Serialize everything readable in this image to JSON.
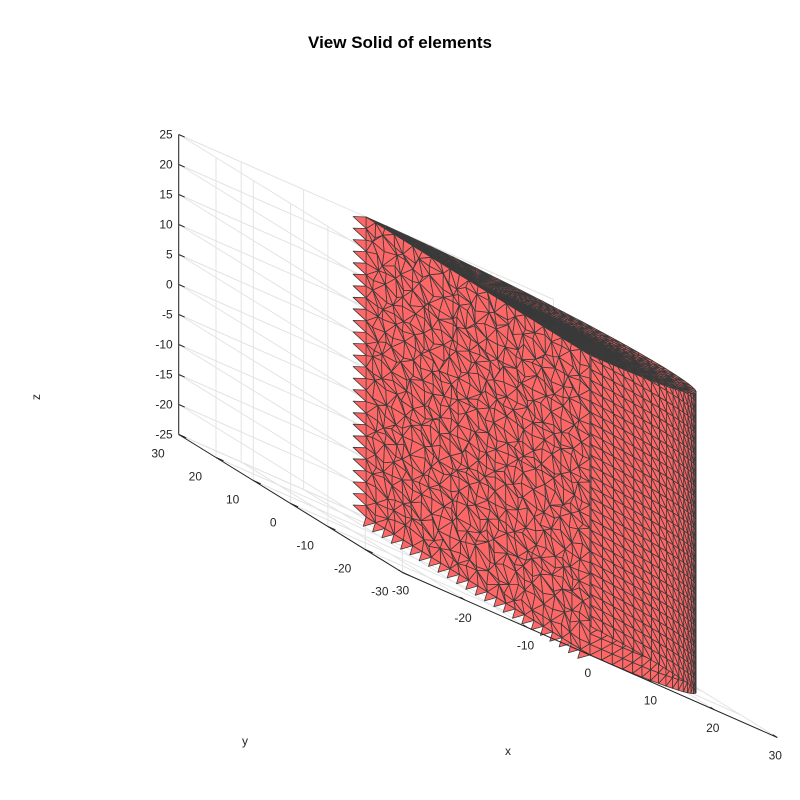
{
  "figure": {
    "title": "View Solid of elements",
    "xlabel": "x",
    "ylabel": "y",
    "zlabel": "z"
  },
  "chart_data": {
    "type": "3d-mesh",
    "title": "View Solid of elements",
    "xlabel": "x",
    "ylabel": "y",
    "zlabel": "z",
    "x_ticks": [
      "-30",
      "-20",
      "-10",
      "0",
      "10",
      "20",
      "30"
    ],
    "y_ticks": [
      "-30",
      "-20",
      "-10",
      "0",
      "10",
      "20",
      "30"
    ],
    "z_ticks": [
      "-25",
      "-20",
      "-15",
      "-10",
      "-5",
      "0",
      "5",
      "10",
      "15",
      "20",
      "25"
    ],
    "xlim": [
      -30,
      30
    ],
    "ylim": [
      -30,
      30
    ],
    "zlim": [
      -25,
      25
    ],
    "grid": true,
    "shape": "half-cylinder tetrahedral mesh",
    "face_color": "#ff6666",
    "edge_color": "#3a3a3a"
  }
}
